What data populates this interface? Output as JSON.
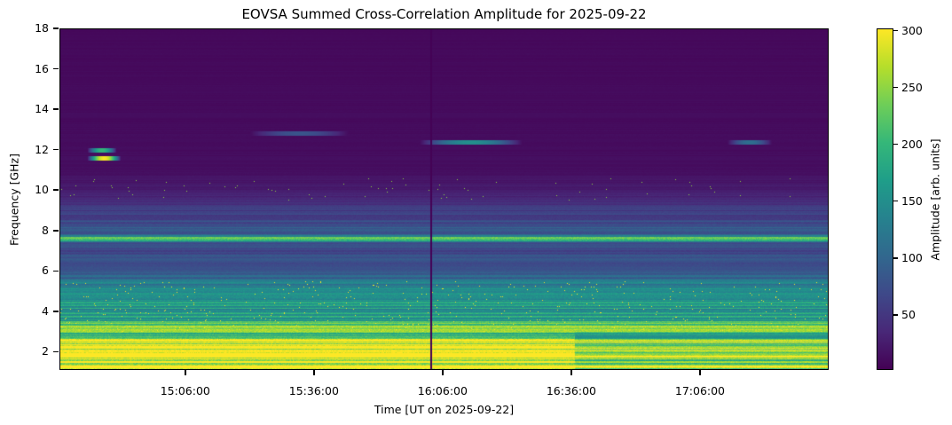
{
  "chart_data": {
    "type": "heatmap",
    "title": "EOVSA Summed Cross-Correlation Amplitude for 2025-09-22",
    "xlabel": "Time [UT on 2025-09-22]",
    "ylabel": "Frequency [GHz]",
    "colorbar_label": "Amplitude [arb. units]",
    "colormap": "viridis",
    "xlim": [
      "14:36:40",
      "17:36:00"
    ],
    "ylim": [
      1.1,
      18
    ],
    "clim": [
      1.5,
      302
    ],
    "xticks": [
      "15:06:00",
      "15:36:00",
      "16:06:00",
      "16:36:00",
      "17:06:00"
    ],
    "yticks": [
      2,
      4,
      6,
      8,
      10,
      12,
      14,
      16,
      18
    ],
    "colorbar_ticks": [
      50,
      100,
      150,
      200,
      250,
      300
    ],
    "frequency_profile": [
      {
        "f_ghz": 1.1,
        "amplitude": 300
      },
      {
        "f_ghz": 2.6,
        "amplitude": 290
      },
      {
        "f_ghz": 2.8,
        "amplitude": 200
      },
      {
        "f_ghz": 3.0,
        "amplitude": 240
      },
      {
        "f_ghz": 3.4,
        "amplitude": 230
      },
      {
        "f_ghz": 3.6,
        "amplitude": 170
      },
      {
        "f_ghz": 4.5,
        "amplitude": 160
      },
      {
        "f_ghz": 5.5,
        "amplitude": 120
      },
      {
        "f_ghz": 6.0,
        "amplitude": 70
      },
      {
        "f_ghz": 7.4,
        "amplitude": 75
      },
      {
        "f_ghz": 7.6,
        "amplitude": 270
      },
      {
        "f_ghz": 7.8,
        "amplitude": 90
      },
      {
        "f_ghz": 9.0,
        "amplitude": 55
      },
      {
        "f_ghz": 10.0,
        "amplitude": 25
      },
      {
        "f_ghz": 11.0,
        "amplitude": 12
      },
      {
        "f_ghz": 18.0,
        "amplitude": 8
      }
    ],
    "features": [
      {
        "label": "burst",
        "time_start": "14:43:00",
        "time_end": "14:51:00",
        "f_ghz": 11.6,
        "amplitude": 300
      },
      {
        "label": "burst",
        "time_start": "14:43:00",
        "time_end": "14:50:00",
        "f_ghz": 12.0,
        "amplitude": 200
      },
      {
        "label": "band",
        "time_start": "16:00:00",
        "time_end": "16:25:00",
        "f_ghz": 12.4,
        "amplitude": 150
      },
      {
        "label": "band",
        "time_start": "17:12:00",
        "time_end": "17:23:00",
        "f_ghz": 12.4,
        "amplitude": 110
      },
      {
        "label": "band",
        "time_start": "15:20:00",
        "time_end": "15:45:00",
        "f_ghz": 12.8,
        "amplitude": 80
      },
      {
        "label": "dropout",
        "time_start": "16:03:00",
        "time_end": "16:03:30",
        "f_ghz": 0,
        "amplitude": 2
      }
    ]
  }
}
